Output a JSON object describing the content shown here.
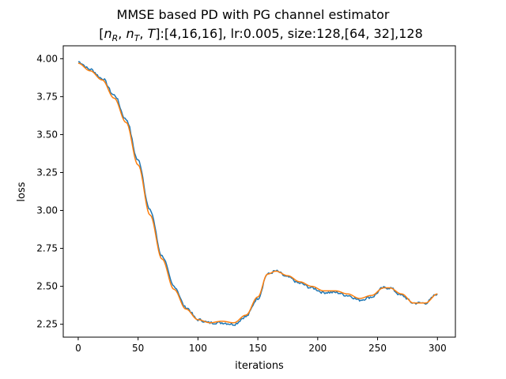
{
  "chart_data": {
    "type": "line",
    "title": "MMSE based PD with PG channel estimator",
    "subtitle": "[n_R, n_T, T]:[4,16,16], lr:0.005, size:128,[64, 32],128",
    "xlabel": "iterations",
    "ylabel": "loss",
    "xlim": [
      -12.5,
      315
    ],
    "ylim": [
      2.165,
      4.085
    ],
    "xticks": [
      0,
      50,
      100,
      150,
      200,
      250,
      300
    ],
    "yticks": [
      2.25,
      2.5,
      2.75,
      3.0,
      3.25,
      3.5,
      3.75,
      4.0
    ],
    "ytick_labels": [
      "2.25",
      "2.50",
      "2.75",
      "3.00",
      "3.25",
      "3.50",
      "3.75",
      "4.00"
    ],
    "grid": false,
    "series": [
      {
        "color": "#1f77b4",
        "noisy": true,
        "x": [
          0,
          10,
          20,
          30,
          40,
          50,
          60,
          70,
          80,
          90,
          100,
          110,
          120,
          130,
          140,
          150,
          158,
          165,
          175,
          185,
          195,
          205,
          215,
          225,
          235,
          245,
          255,
          260,
          270,
          280,
          290,
          300
        ],
        "y": [
          3.98,
          3.93,
          3.87,
          3.76,
          3.6,
          3.33,
          3.0,
          2.7,
          2.5,
          2.36,
          2.28,
          2.26,
          2.26,
          2.25,
          2.3,
          2.42,
          2.58,
          2.6,
          2.56,
          2.52,
          2.49,
          2.46,
          2.46,
          2.44,
          2.41,
          2.43,
          2.49,
          2.49,
          2.44,
          2.39,
          2.39,
          2.45
        ]
      },
      {
        "color": "#ff7f0e",
        "noisy": false,
        "x": [
          0,
          10,
          20,
          30,
          40,
          50,
          60,
          70,
          80,
          90,
          100,
          110,
          120,
          130,
          140,
          150,
          158,
          165,
          175,
          185,
          195,
          205,
          215,
          225,
          235,
          245,
          255,
          260,
          270,
          280,
          290,
          300
        ],
        "y": [
          3.97,
          3.92,
          3.86,
          3.74,
          3.58,
          3.3,
          2.97,
          2.68,
          2.48,
          2.35,
          2.28,
          2.26,
          2.27,
          2.26,
          2.31,
          2.43,
          2.58,
          2.6,
          2.57,
          2.53,
          2.5,
          2.47,
          2.47,
          2.45,
          2.42,
          2.44,
          2.49,
          2.49,
          2.45,
          2.39,
          2.39,
          2.45
        ]
      }
    ]
  }
}
